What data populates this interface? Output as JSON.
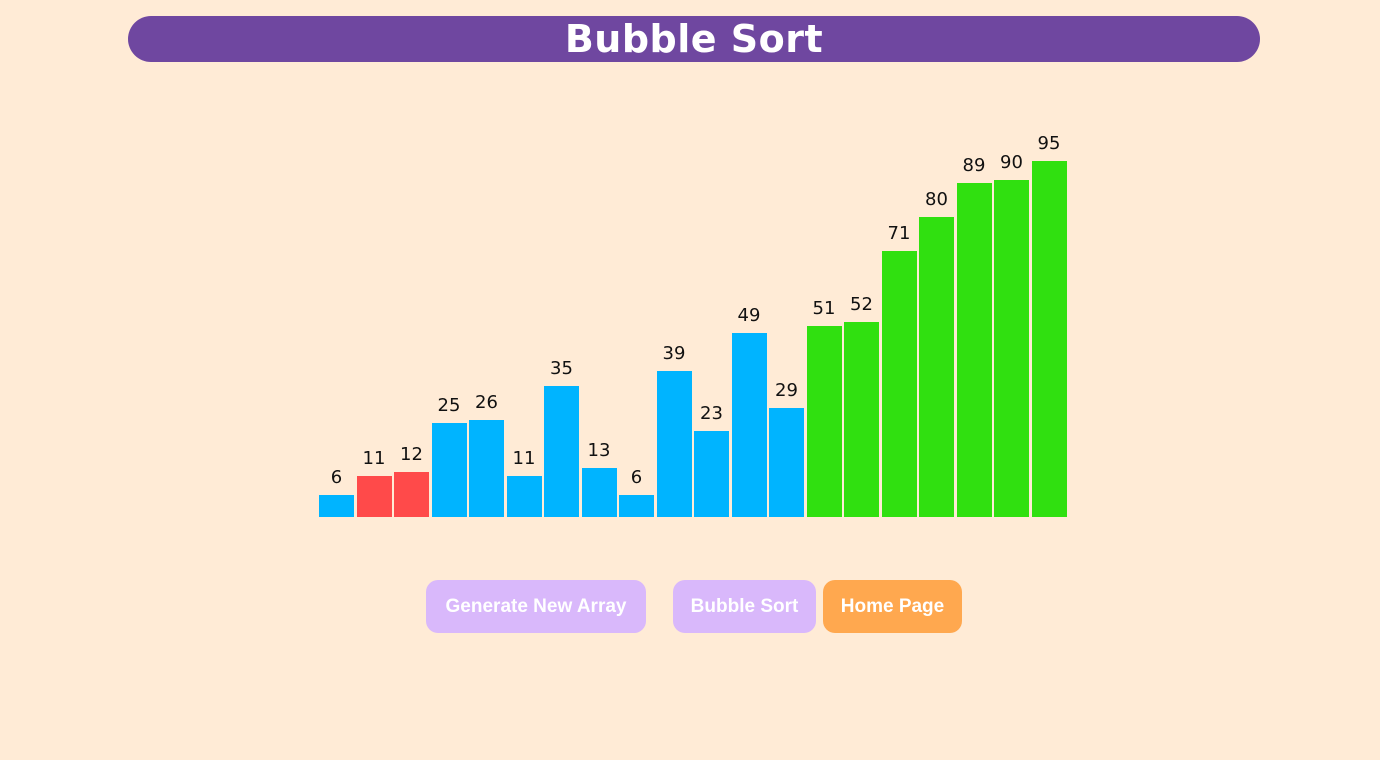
{
  "header": {
    "title": "Bubble Sort"
  },
  "controls": {
    "generate_label": "Generate New Array",
    "sort_label": "Bubble Sort",
    "home_label": "Home Page"
  },
  "colors": {
    "unsorted": "#00b4ff",
    "comparing": "#ff4a4a",
    "sorted": "#30e010",
    "title_bg": "#6f47a0",
    "button_disabled": "#d9b8fb",
    "button_active": "#ffa84f",
    "page_bg": "#ffebd6"
  },
  "chart_data": {
    "type": "bar",
    "title": "",
    "xlabel": "",
    "ylabel": "",
    "values": [
      6,
      11,
      12,
      25,
      26,
      11,
      35,
      13,
      6,
      39,
      23,
      49,
      29,
      51,
      52,
      71,
      80,
      89,
      90,
      95
    ],
    "states": [
      "unsorted",
      "comparing",
      "comparing",
      "unsorted",
      "unsorted",
      "unsorted",
      "unsorted",
      "unsorted",
      "unsorted",
      "unsorted",
      "unsorted",
      "unsorted",
      "unsorted",
      "sorted",
      "sorted",
      "sorted",
      "sorted",
      "sorted",
      "sorted",
      "sorted"
    ],
    "grid": false,
    "legend": "none"
  }
}
